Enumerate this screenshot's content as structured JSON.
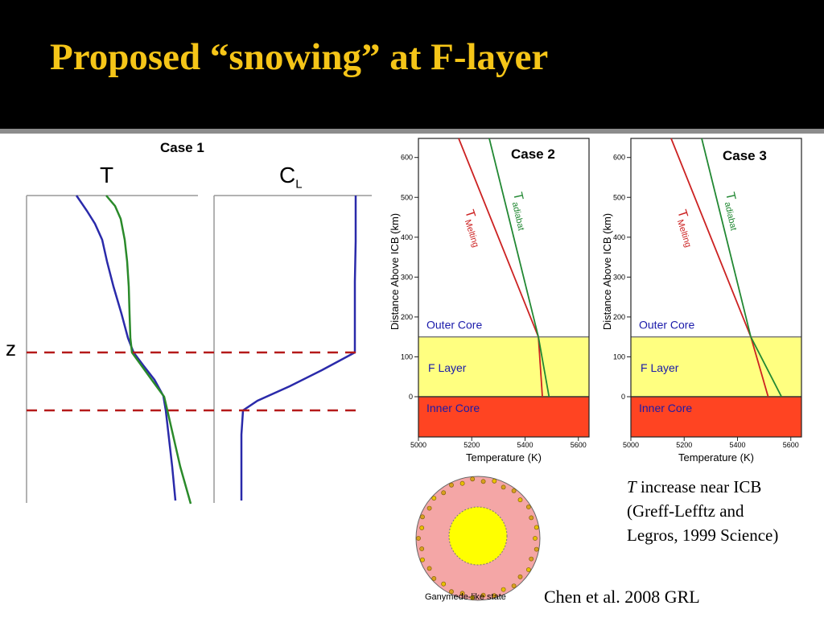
{
  "title": "Proposed “snowing” at F-layer",
  "case1": {
    "label": "Case 1",
    "t_label": "T",
    "c_label": "C",
    "c_sub": "L",
    "z_label": "z"
  },
  "plots": {
    "case2_label": "Case 2",
    "case3_label": "Case 3",
    "x_axis_label": "Temperature (K)",
    "y_axis_label": "Distance Above ICB (km)",
    "x_ticks": [
      "5000",
      "5200",
      "5400",
      "5600"
    ],
    "y_ticks": [
      "0",
      "100",
      "200",
      "300",
      "400",
      "500",
      "600"
    ],
    "outer_core": "Outer Core",
    "f_layer": "F Layer",
    "inner_core": "Inner Core",
    "t_symbol": "T",
    "melting_sub": "Melting",
    "adiabat_sub": "adiabat",
    "colors": {
      "outer_core_fill": "#ffffff",
      "f_layer_fill": "#ffff80",
      "inner_core_fill": "#ff4422",
      "melting_line": "#cc2222",
      "adiabat_line": "#228833",
      "region_text": "#1a1aaa"
    }
  },
  "ganymede_label": "Ganymede-like state",
  "note_t": "T",
  "note_line1": " increase near ICB",
  "note_line2": "(Greff-Lefftz and",
  "note_line3": "Legros, 1999 Science)",
  "credit": "Chen et al. 2008 GRL"
}
